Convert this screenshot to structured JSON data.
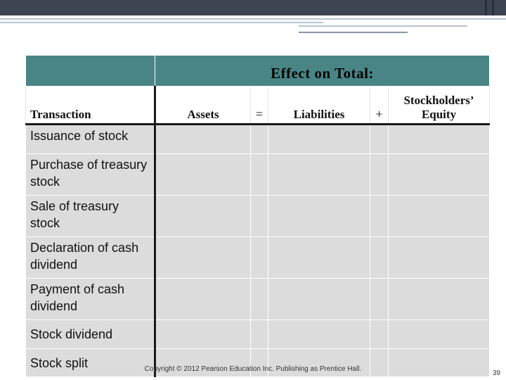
{
  "header": {
    "band_title": "Effect on Total:"
  },
  "columns": {
    "transaction": "Transaction",
    "assets": "Assets",
    "equals": "=",
    "liabilities": "Liabilities",
    "plus": "+",
    "equity_line1": "Stockholders’",
    "equity_line2": "Equity"
  },
  "rows": [
    {
      "label": "Issuance of stock"
    },
    {
      "label": "Purchase of treasury stock"
    },
    {
      "label": "Sale of treasury stock"
    },
    {
      "label": "Declaration of cash dividend"
    },
    {
      "label": "Payment of cash dividend"
    },
    {
      "label": "Stock dividend"
    },
    {
      "label": "Stock split"
    }
  ],
  "footer": {
    "copyright": "Copyright © 2012 Pearson Education Inc. Publishing as Prentice Hall.",
    "page_number": "39"
  },
  "colors": {
    "band": "#4a8585",
    "cell": "#dcdcdc",
    "top_band": "#3d4451"
  }
}
